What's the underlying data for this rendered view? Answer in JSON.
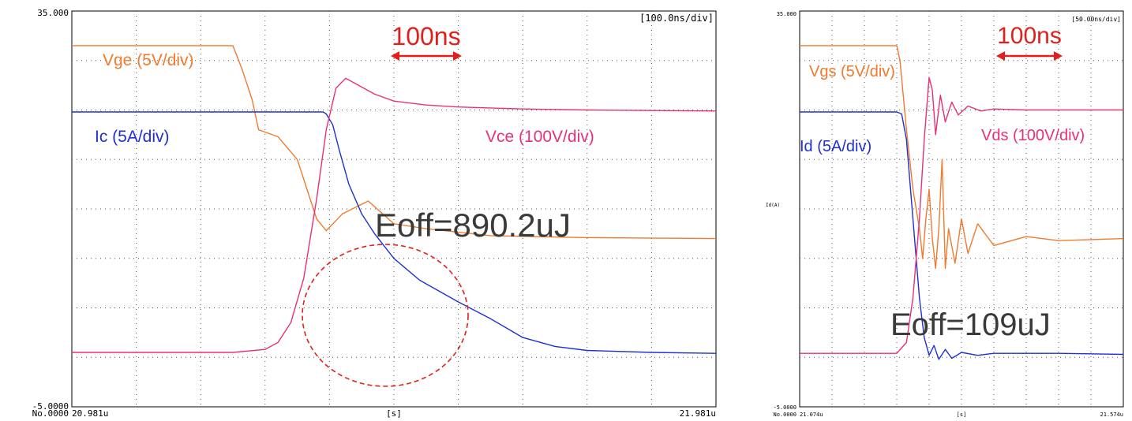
{
  "chart_data": [
    {
      "type": "line",
      "title": "",
      "timebase": "[100.0ns/div]",
      "y_top_label": "35.000",
      "y_bottom_label": "-5.0000",
      "record_label": "No.0000",
      "x_start_label": "20.981u",
      "x_mid_label": "[s]",
      "x_end_label": "21.981u",
      "ylim": [
        -5,
        35
      ],
      "xlim": [
        0,
        10
      ],
      "grid": true,
      "annotations": {
        "scale_label": "100ns",
        "energy_label": "Eoff=890.2uJ"
      },
      "series": [
        {
          "name": "Vge (5V/div)",
          "color": "#f07a2d",
          "x": [
            0,
            2.3,
            2.5,
            2.65,
            2.8,
            2.9,
            3.2,
            3.5,
            3.8,
            3.95,
            4.2,
            4.6,
            5.0,
            5.5,
            6.5,
            8.0,
            10
          ],
          "y": [
            31.5,
            31.5,
            31.5,
            29,
            26,
            23,
            22.3,
            20,
            14,
            12.8,
            14.5,
            15.8,
            13.5,
            13.0,
            12.3,
            12.1,
            12.0
          ]
        },
        {
          "name": "Ic (5A/div)",
          "color": "#1f2fd0",
          "x": [
            0,
            3.0,
            3.9,
            3.95,
            4.05,
            4.15,
            4.3,
            4.5,
            4.7,
            5.0,
            5.4,
            6.0,
            6.5,
            7.0,
            7.5,
            8.0,
            9.0,
            10
          ],
          "y": [
            24.8,
            24.8,
            24.8,
            24.6,
            23.5,
            21,
            17.5,
            14.5,
            12.5,
            10,
            7.8,
            5.6,
            3.9,
            2.0,
            1.1,
            0.7,
            0.5,
            0.4
          ]
        },
        {
          "name": "Vce (100V/div)",
          "color": "#e8307a",
          "x": [
            0,
            2.5,
            3.0,
            3.2,
            3.4,
            3.6,
            3.8,
            3.95,
            4.1,
            4.25,
            4.45,
            4.7,
            5.0,
            5.5,
            6.0,
            7.0,
            8.0,
            10
          ],
          "y": [
            0.5,
            0.5,
            0.8,
            1.5,
            3.5,
            8,
            16,
            23,
            27.2,
            28.2,
            27.5,
            26.6,
            25.9,
            25.5,
            25.3,
            25.1,
            25.0,
            24.9
          ]
        }
      ]
    },
    {
      "type": "line",
      "title": "",
      "timebase": "[50.00ns/div]",
      "y_top_label": "35.000",
      "y_bottom_label": "-5.0000",
      "record_label": "No.0000",
      "x_start_label": "21.074u",
      "x_mid_label": "[s]",
      "x_end_label": "21.574u",
      "y_axis_label": "Id(A)",
      "ylim": [
        -5,
        35
      ],
      "xlim": [
        0,
        10
      ],
      "grid": true,
      "annotations": {
        "scale_label": "100ns",
        "energy_label": "Eoff=109uJ"
      },
      "series": [
        {
          "name": "Vgs (5V/div)",
          "color": "#f07a2d",
          "x": [
            0,
            3.0,
            3.1,
            3.3,
            3.5,
            3.7,
            3.8,
            3.9,
            4.0,
            4.1,
            4.2,
            4.3,
            4.4,
            4.5,
            4.6,
            4.8,
            5.0,
            5.2,
            5.5,
            6.0,
            7.0,
            8.0,
            10
          ],
          "y": [
            31.5,
            31.5,
            30,
            23,
            17,
            13,
            10,
            14,
            17,
            12,
            9,
            13,
            20,
            9,
            13,
            9.5,
            14,
            10.5,
            13.5,
            11.3,
            12.2,
            11.8,
            12.0
          ]
        },
        {
          "name": "Id (5A/div)",
          "color": "#1f2fd0",
          "x": [
            0,
            3.0,
            3.15,
            3.3,
            3.5,
            3.7,
            3.85,
            4.0,
            4.15,
            4.3,
            4.5,
            4.7,
            5.0,
            5.5,
            6.0,
            8.0,
            10
          ],
          "y": [
            24.8,
            24.8,
            24.6,
            22,
            14,
            6,
            2,
            0.2,
            1.2,
            -0.2,
            0.8,
            -0.1,
            0.5,
            0.2,
            0.4,
            0.4,
            0.3
          ]
        },
        {
          "name": "Vds (100V/div)",
          "color": "#e8307a",
          "x": [
            0,
            3.0,
            3.3,
            3.5,
            3.7,
            3.85,
            4.0,
            4.1,
            4.2,
            4.35,
            4.5,
            4.7,
            4.9,
            5.2,
            5.6,
            6.0,
            7.0,
            8.0,
            10
          ],
          "y": [
            0.4,
            0.4,
            1.5,
            6,
            14,
            22,
            28.3,
            27,
            22.5,
            26.5,
            23.8,
            25.8,
            24.5,
            25.4,
            24.9,
            25.1,
            25.0,
            25.0,
            25.0
          ]
        }
      ]
    }
  ]
}
